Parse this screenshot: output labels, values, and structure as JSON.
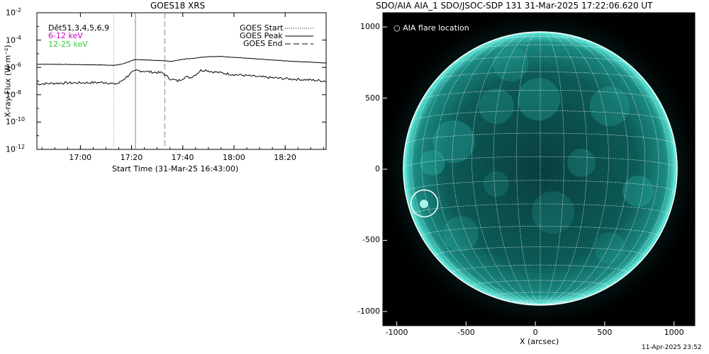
{
  "chart_data": [
    {
      "type": "line",
      "title": "GOES18 XRS",
      "xlabel": "Start Time (31-Mar-25 16:43:00)",
      "ylabel": "X-ray Flux (W m⁻²)",
      "x_ticks": [
        "17:00",
        "17:20",
        "17:40",
        "18:00",
        "18:20"
      ],
      "x_tick_minutes": [
        60,
        80,
        100,
        120,
        140
      ],
      "x_range_minutes": [
        43,
        156
      ],
      "y_scale": "log",
      "ylim": [
        1e-12,
        0.01
      ],
      "y_ticks": [
        {
          "base": "10",
          "exp": "-2",
          "value": 0.01
        },
        {
          "base": "10",
          "exp": "-4",
          "value": 0.0001
        },
        {
          "base": "10",
          "exp": "-6",
          "value": 1e-06
        },
        {
          "base": "10",
          "exp": "-8",
          "value": 1e-08
        },
        {
          "base": "10",
          "exp": "-10",
          "value": 1e-10
        },
        {
          "base": "10",
          "exp": "-12",
          "value": 1e-12
        }
      ],
      "annotations": {
        "quality": "Dět51,3,4,5,6,9",
        "band_low": "6-12 keV",
        "band_high": "12-25 keV",
        "band_low_color": "#cc00cc",
        "band_high_color": "#33cc33"
      },
      "legend": {
        "placement": "top-right",
        "items": [
          "GOES Start",
          "GOES Peak",
          "GOES End"
        ]
      },
      "event_lines_minutes": {
        "start": 73,
        "peak": 81.5,
        "end": 93
      },
      "series": [
        {
          "band": "low",
          "x": [
            43,
            50,
            60,
            70,
            73,
            76,
            79,
            81,
            83,
            86,
            90,
            93,
            96,
            100,
            104,
            107,
            110,
            115,
            120,
            130,
            140,
            150,
            156
          ],
          "y": [
            1.7e-06,
            1.7e-06,
            1.6e-06,
            1.5e-06,
            1.4e-06,
            1.7e-06,
            2.6e-06,
            3.5e-06,
            3.7e-06,
            3.5e-06,
            3.2e-06,
            3e-06,
            2.8e-06,
            4e-06,
            4.6e-06,
            5.5e-06,
            6.2e-06,
            6.3e-06,
            5.5e-06,
            4e-06,
            3e-06,
            2.4e-06,
            2.1e-06
          ]
        },
        {
          "band": "high",
          "x": [
            43,
            50,
            60,
            70,
            73,
            75,
            78,
            80,
            82,
            84,
            88,
            92,
            95,
            98,
            101,
            103,
            105,
            107,
            109,
            111,
            115,
            120,
            125,
            130,
            140,
            150,
            156
          ],
          "y": [
            6e-08,
            7e-08,
            7.5e-08,
            8e-08,
            6e-08,
            7e-08,
            2e-07,
            4e-07,
            6e-07,
            5.5e-07,
            4.5e-07,
            4e-07,
            1.5e-07,
            1e-07,
            2e-07,
            1.8e-07,
            3e-07,
            6e-07,
            6.5e-07,
            5e-07,
            4e-07,
            3e-07,
            2.5e-07,
            2e-07,
            1.5e-07,
            1.2e-07,
            1e-07
          ]
        }
      ]
    },
    {
      "type": "heatmap",
      "title": "SDO/AIA AIA_1 SDO/JSOC-SDP 131 31-Mar-2025 17:22:06.620 UT",
      "xlabel": "X (arcsec)",
      "ylabel": "",
      "xlim": [
        -1100,
        1150
      ],
      "ylim": [
        -1100,
        1100
      ],
      "x_ticks": [
        -1000,
        -500,
        0,
        500,
        1000
      ],
      "y_ticks": [
        1000,
        500,
        0,
        -500,
        -1000
      ],
      "legend_text": "○ AIA flare location",
      "flare_location_arcsec": [
        -800,
        -240
      ],
      "solar_radius_arcsec": 960,
      "colors": {
        "background": "#000000",
        "disk": "#0b5a56",
        "bright": "#3fd1c4",
        "grid": "#ffffff"
      }
    }
  ],
  "footer": {
    "timestamp": "11-Apr-2025 23:52"
  }
}
